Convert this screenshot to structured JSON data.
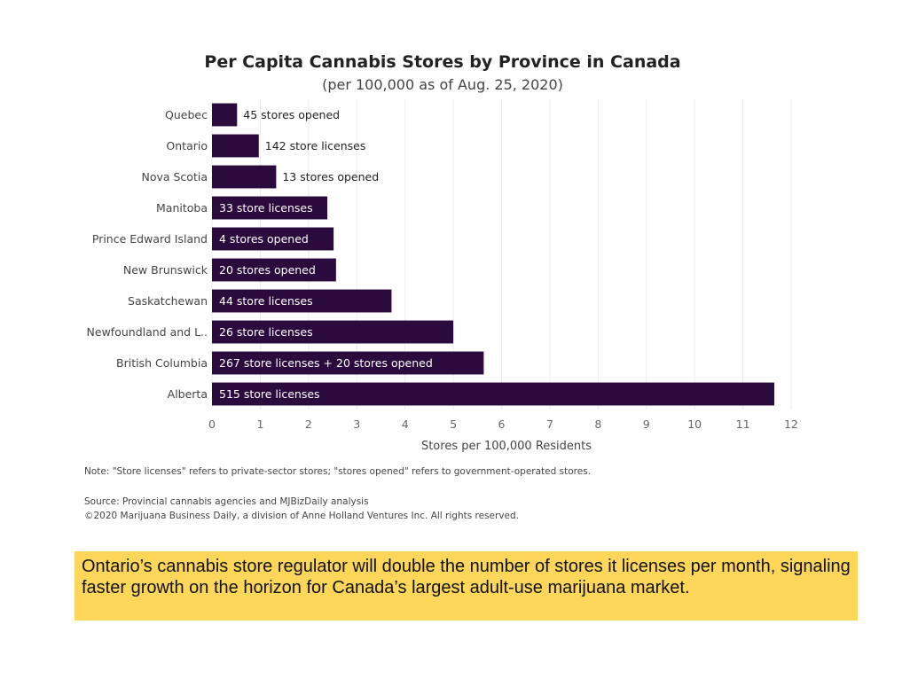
{
  "chart_data": {
    "type": "bar",
    "orientation": "horizontal",
    "title": "Per Capita Cannabis Stores by Province in Canada",
    "subtitle": "(per 100,000 as of Aug. 25, 2020)",
    "categories": [
      "Quebec",
      "Ontario",
      "Nova Scotia",
      "Manitoba",
      "Prince Edward Island",
      "New Brunswick",
      "Saskatchewan",
      "Newfoundland and L..",
      "British Columbia",
      "Alberta"
    ],
    "values": [
      0.52,
      0.97,
      1.33,
      2.39,
      2.52,
      2.57,
      3.72,
      5.0,
      5.63,
      11.65
    ],
    "bar_labels": [
      "45 stores opened",
      "142 store licenses",
      "13 stores opened",
      "33 store licenses",
      "4 stores opened",
      "20 stores opened",
      "44 store licenses",
      "26 store licenses",
      "267 store licenses + 20 stores opened",
      "515 store licenses"
    ],
    "bar_label_inside": [
      false,
      false,
      false,
      true,
      true,
      true,
      true,
      true,
      true,
      true
    ],
    "xlabel": "Stores per 100,000 Residents",
    "ylabel": "",
    "xlim": [
      0,
      12
    ],
    "xticks": [
      0,
      1,
      2,
      3,
      4,
      5,
      6,
      7,
      8,
      9,
      10,
      11,
      12
    ],
    "grid": true,
    "bar_color": "#2b0a3d"
  },
  "footer": {
    "note": "Note: \"Store licenses\" refers to private-sector stores; \"stores opened\" refers to government-operated stores.",
    "source": "Source: Provincial cannabis agencies and MJBizDaily analysis",
    "copyright": "©2020 Marijuana Business Daily, a division of Anne Holland Ventures Inc. All rights reserved."
  },
  "callout": {
    "text": "Ontario’s cannabis store regulator will double the number of stores it licenses per month, signaling faster growth on the horizon for Canada’s largest adult-use marijuana market.",
    "background": "#fdd65a"
  }
}
